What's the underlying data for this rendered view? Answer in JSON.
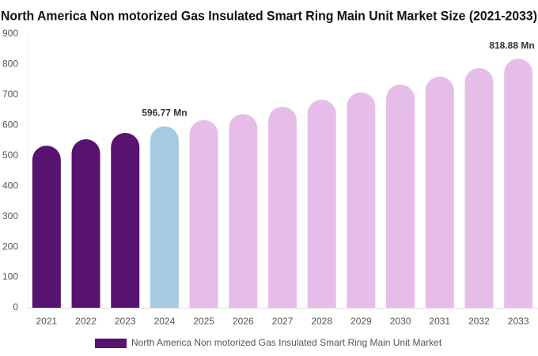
{
  "chart_data": {
    "type": "bar",
    "title": "North America Non motorized Gas Insulated Smart Ring Main Unit Market Size (2021-2033)",
    "categories": [
      "2021",
      "2022",
      "2023",
      "2024",
      "2025",
      "2026",
      "2027",
      "2028",
      "2029",
      "2030",
      "2031",
      "2032",
      "2033"
    ],
    "series": [
      {
        "name": "North America Non motorized Gas Insulated Smart Ring Main Unit Market",
        "color": "#58126f",
        "values": [
          533,
          554,
          575,
          596.77,
          617,
          637,
          661,
          684,
          708,
          734,
          760,
          788,
          818.88
        ],
        "value_labels": [
          null,
          null,
          null,
          "596.77 Mn",
          null,
          null,
          null,
          null,
          null,
          null,
          null,
          null,
          "818.88 Mn"
        ],
        "colors": [
          "#58126f",
          "#58126f",
          "#58126f",
          "#a6cbe0",
          "#e6bde8",
          "#e6bde8",
          "#e6bde8",
          "#e6bde8",
          "#e6bde8",
          "#e6bde8",
          "#e6bde8",
          "#e6bde8",
          "#e6bde8"
        ]
      }
    ],
    "ylim": [
      0,
      900
    ],
    "yticks": [
      0,
      100,
      200,
      300,
      400,
      500,
      600,
      700,
      800,
      900
    ],
    "grid": false
  }
}
